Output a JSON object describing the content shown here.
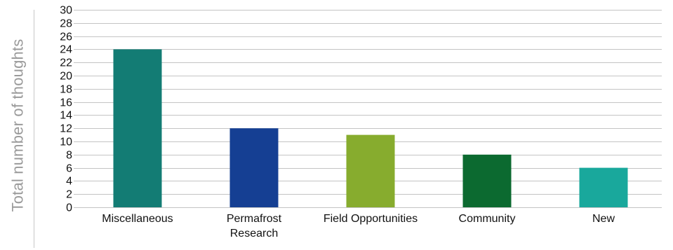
{
  "chart_data": {
    "type": "bar",
    "title": "",
    "xlabel": "",
    "ylabel": "Total number of thoughts",
    "categories": [
      [
        "Miscellaneous"
      ],
      [
        "Permafrost",
        "Research"
      ],
      [
        "Field Opportunities"
      ],
      [
        "Community"
      ],
      [
        "New"
      ]
    ],
    "values": [
      24,
      12,
      11,
      8,
      6
    ],
    "colors": [
      "#137c74",
      "#153f93",
      "#87ac2e",
      "#0c6a30",
      "#19a89c"
    ],
    "ylim": [
      0,
      30
    ],
    "yticks": [
      0,
      2,
      4,
      6,
      8,
      10,
      12,
      14,
      16,
      18,
      20,
      22,
      24,
      26,
      28,
      30
    ],
    "grid": true,
    "legend": "none"
  }
}
